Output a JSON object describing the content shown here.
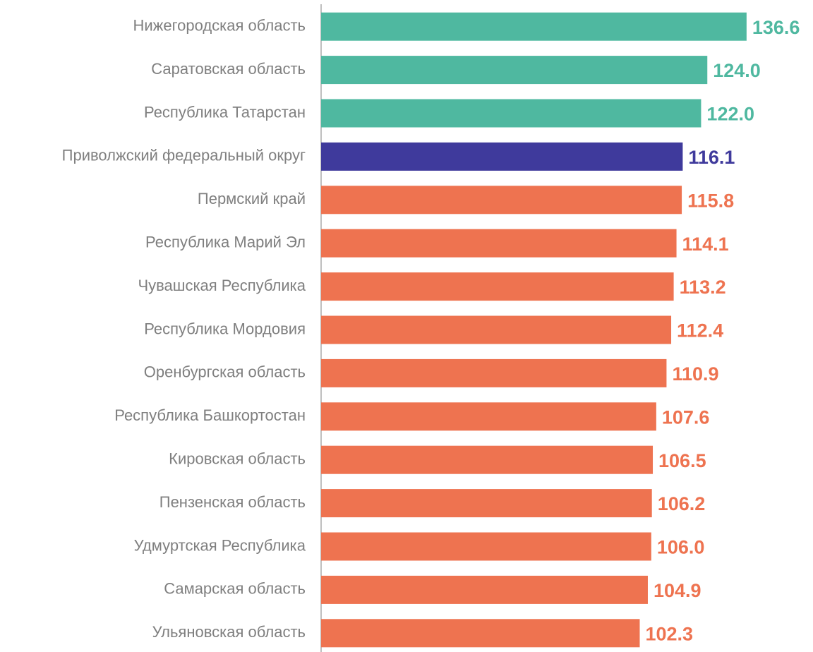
{
  "chart_data": {
    "type": "hbar",
    "categories": [
      "Нижегородская область",
      "Саратовская область",
      "Республика Татарстан",
      "Приволжский федеральный округ",
      "Пермский край",
      "Республика Марий Эл",
      "Чувашская Республика",
      "Республика Мордовия",
      "Оренбургская область",
      "Республика Башкортостан",
      "Кировская область",
      "Пензенская область",
      "Удмуртская Республика",
      "Самарская область",
      "Ульяновская область"
    ],
    "values": [
      136.6,
      124.0,
      122.0,
      116.1,
      115.8,
      114.1,
      113.2,
      112.4,
      110.9,
      107.6,
      106.5,
      106.2,
      106.0,
      104.9,
      102.3
    ],
    "value_labels": [
      "136.6",
      "124.0",
      "122.0",
      "116.1",
      "115.8",
      "114.1",
      "113.2",
      "112.4",
      "110.9",
      "107.6",
      "106.5",
      "106.2",
      "106.0",
      "104.9",
      "102.3"
    ],
    "colors": [
      "#4fb8a0",
      "#4fb8a0",
      "#4fb8a0",
      "#3f3a9c",
      "#ee7350",
      "#ee7350",
      "#ee7350",
      "#ee7350",
      "#ee7350",
      "#ee7350",
      "#ee7350",
      "#ee7350",
      "#ee7350",
      "#ee7350",
      "#ee7350"
    ],
    "xlim": [
      0,
      150
    ]
  }
}
